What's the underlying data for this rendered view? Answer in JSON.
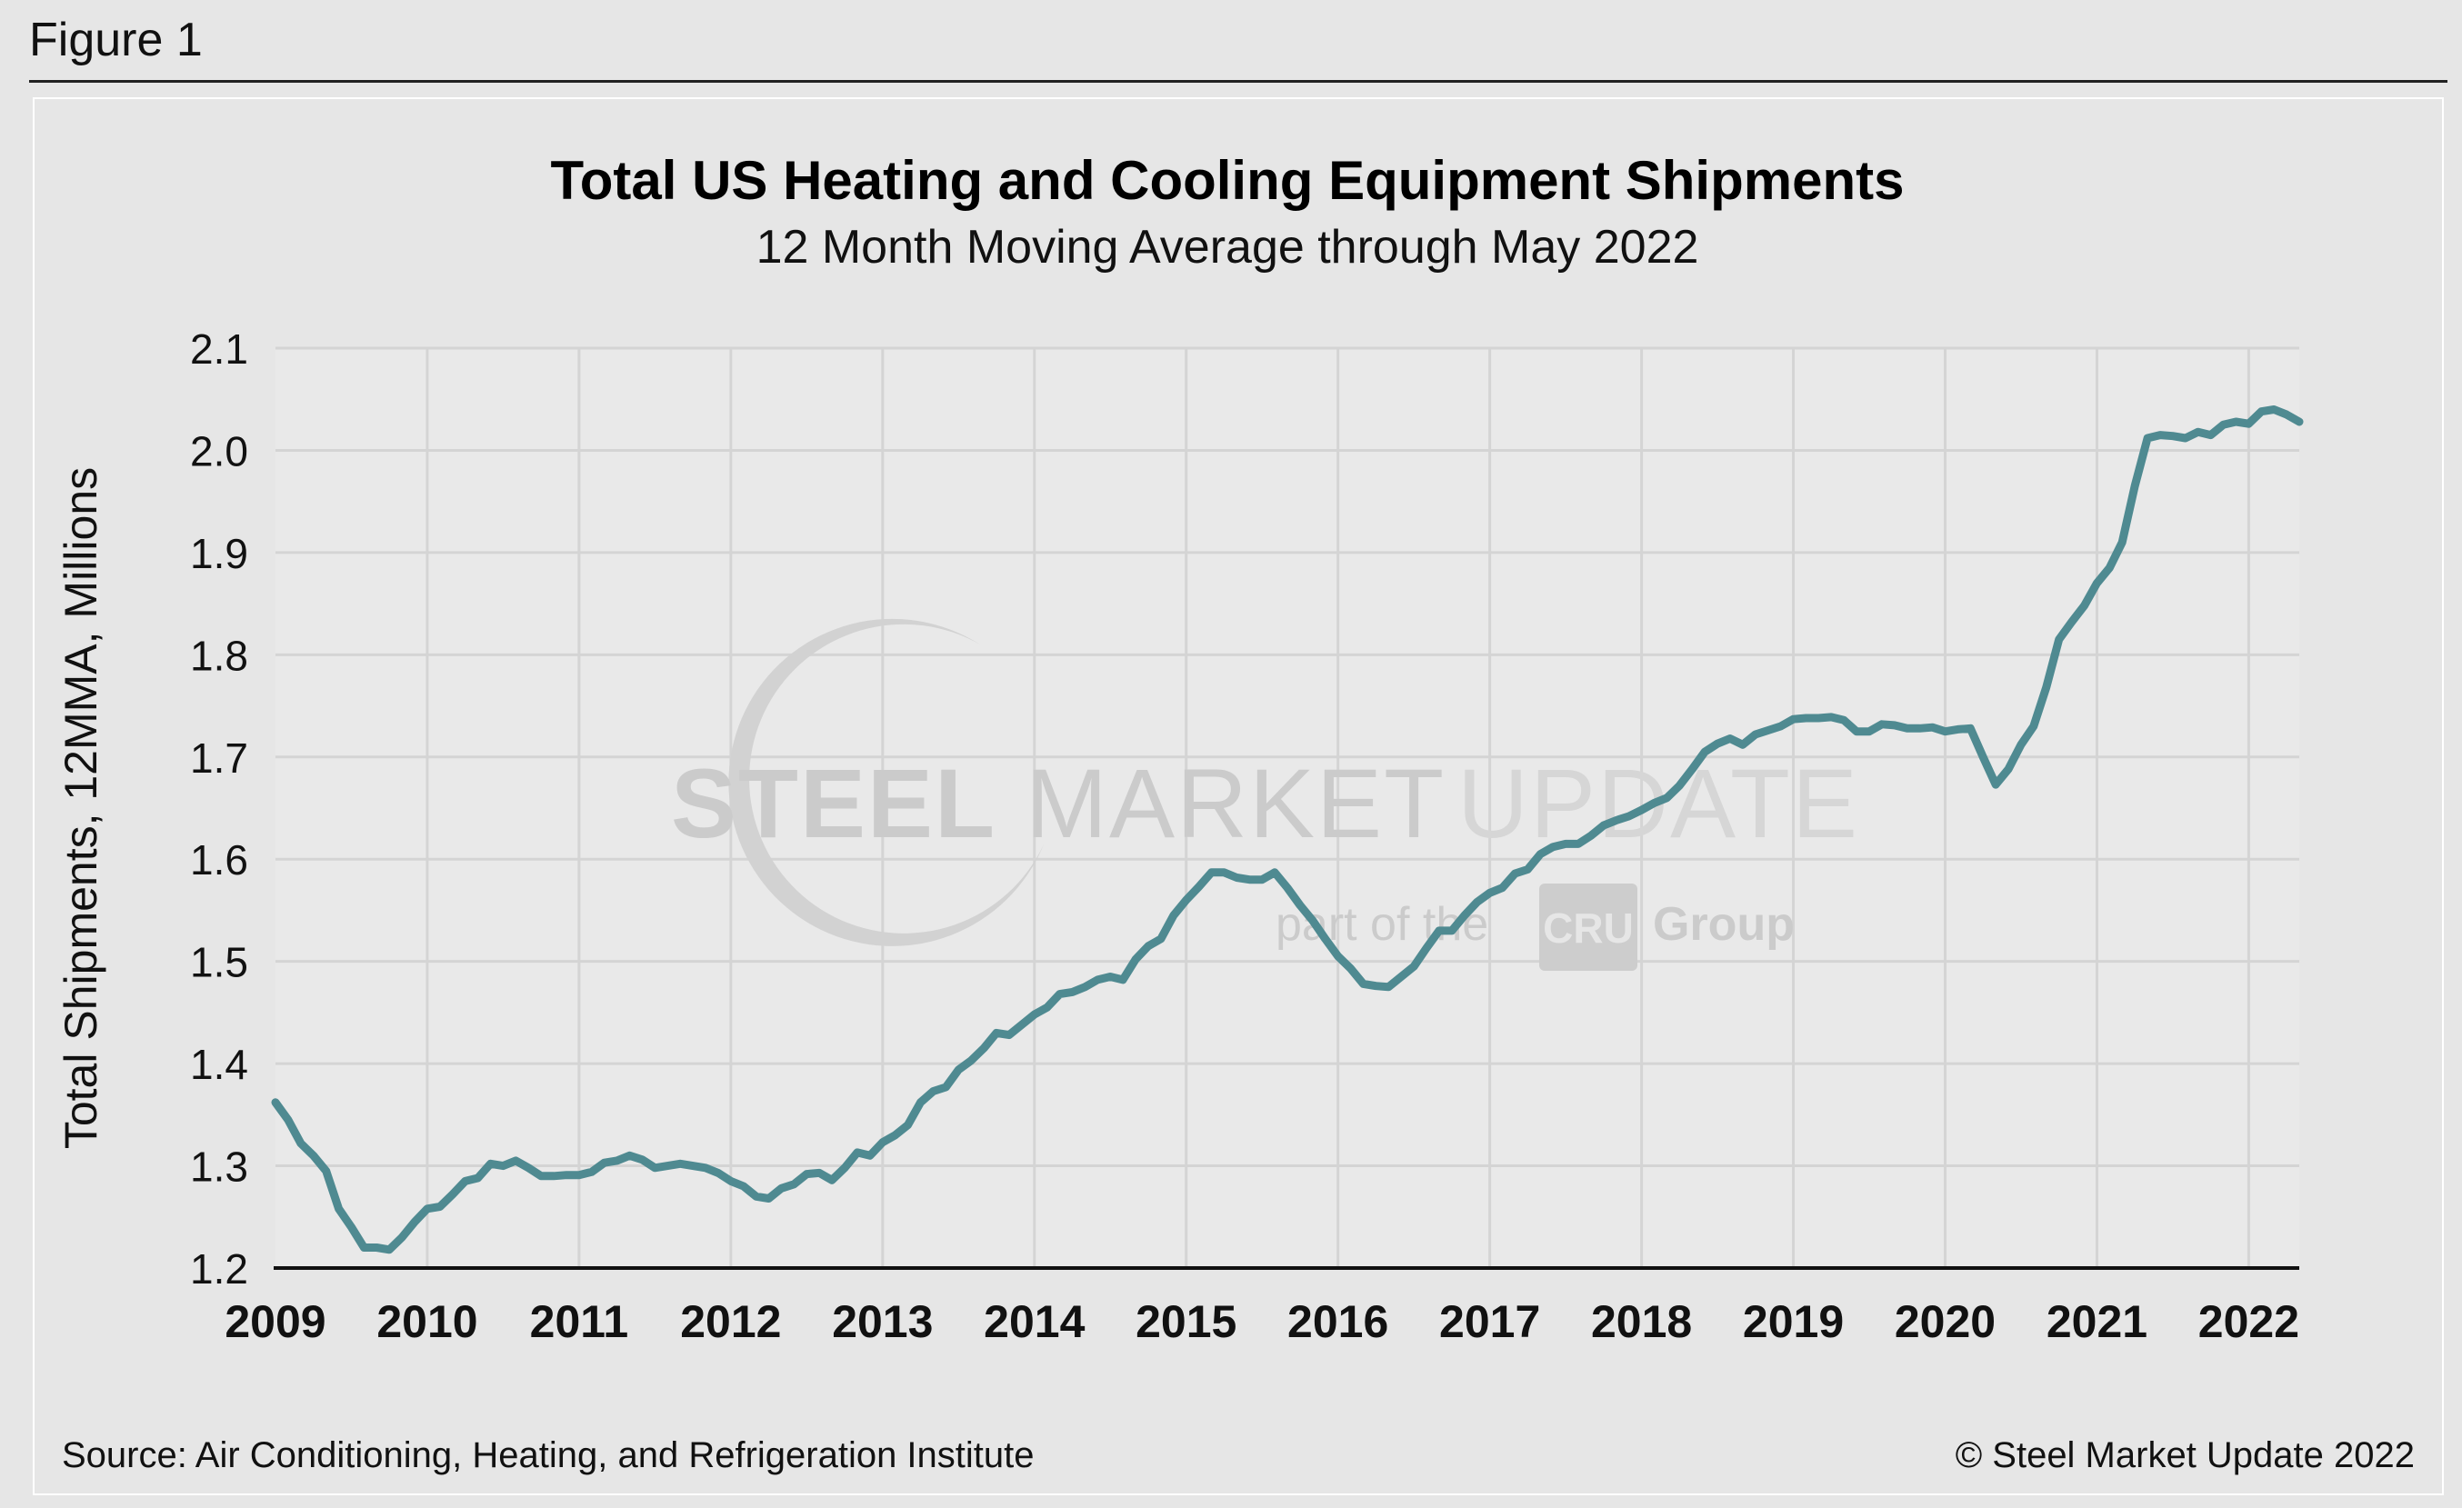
{
  "figure_label": "Figure 1",
  "source": "Source: Air Conditioning, Heating, and Refrigeration Institute",
  "copyright": "© Steel Market Update 2022",
  "watermark": {
    "line1a": "STEEL",
    "line1b": "MARKET",
    "line1c": "UPDATE",
    "line2a": "part of the",
    "line2b": "CRU",
    "line2c": "Group"
  },
  "colors": {
    "line": "#4f8a91",
    "plot_bg": "#e9e9e9",
    "grid": "#d4d4d4",
    "axis": "#111111"
  },
  "chart_data": {
    "type": "line",
    "title": "Total US Heating and Cooling Equipment Shipments",
    "subtitle": "12 Month Moving Average through May 2022",
    "xlabel": "",
    "ylabel": "Total Shipments, 12MMA, Millions",
    "ylim": [
      1.2,
      2.1
    ],
    "xlim": [
      2009.0,
      2022.333
    ],
    "y_ticks": [
      "1.2",
      "1.3",
      "1.4",
      "1.5",
      "1.6",
      "1.7",
      "1.8",
      "1.9",
      "2.0",
      "2.1"
    ],
    "x_ticks": [
      "2009",
      "2010",
      "2011",
      "2012",
      "2013",
      "2014",
      "2015",
      "2016",
      "2017",
      "2018",
      "2019",
      "2020",
      "2021",
      "2022"
    ],
    "grid": true,
    "series": [
      {
        "name": "Total Shipments 12MMA",
        "start": "2009-01",
        "end": "2022-05",
        "values": [
          1.362,
          1.345,
          1.322,
          1.31,
          1.295,
          1.258,
          1.24,
          1.22,
          1.22,
          1.218,
          1.23,
          1.245,
          1.258,
          1.26,
          1.272,
          1.285,
          1.288,
          1.302,
          1.3,
          1.305,
          1.298,
          1.29,
          1.29,
          1.291,
          1.291,
          1.294,
          1.303,
          1.305,
          1.31,
          1.306,
          1.298,
          1.3,
          1.302,
          1.3,
          1.298,
          1.293,
          1.285,
          1.28,
          1.27,
          1.268,
          1.278,
          1.282,
          1.292,
          1.293,
          1.286,
          1.298,
          1.313,
          1.31,
          1.323,
          1.33,
          1.34,
          1.362,
          1.373,
          1.377,
          1.394,
          1.403,
          1.415,
          1.43,
          1.428,
          1.438,
          1.448,
          1.455,
          1.468,
          1.47,
          1.475,
          1.482,
          1.485,
          1.482,
          1.502,
          1.515,
          1.522,
          1.545,
          1.56,
          1.573,
          1.587,
          1.587,
          1.582,
          1.58,
          1.58,
          1.587,
          1.572,
          1.555,
          1.54,
          1.522,
          1.505,
          1.493,
          1.478,
          1.476,
          1.475,
          1.485,
          1.495,
          1.513,
          1.53,
          1.53,
          1.545,
          1.558,
          1.567,
          1.572,
          1.586,
          1.59,
          1.605,
          1.612,
          1.615,
          1.615,
          1.623,
          1.633,
          1.638,
          1.642,
          1.648,
          1.655,
          1.66,
          1.672,
          1.688,
          1.705,
          1.713,
          1.718,
          1.712,
          1.722,
          1.726,
          1.73,
          1.737,
          1.738,
          1.738,
          1.739,
          1.736,
          1.725,
          1.725,
          1.732,
          1.731,
          1.728,
          1.728,
          1.729,
          1.725,
          1.727,
          1.728,
          1.7,
          1.673,
          1.688,
          1.712,
          1.73,
          1.768,
          1.815,
          1.832,
          1.848,
          1.87,
          1.885,
          1.91,
          1.965,
          2.012,
          2.015,
          2.014,
          2.012,
          2.018,
          2.015,
          2.025,
          2.028,
          2.026,
          2.038,
          2.04,
          2.035,
          2.028
        ]
      }
    ]
  }
}
